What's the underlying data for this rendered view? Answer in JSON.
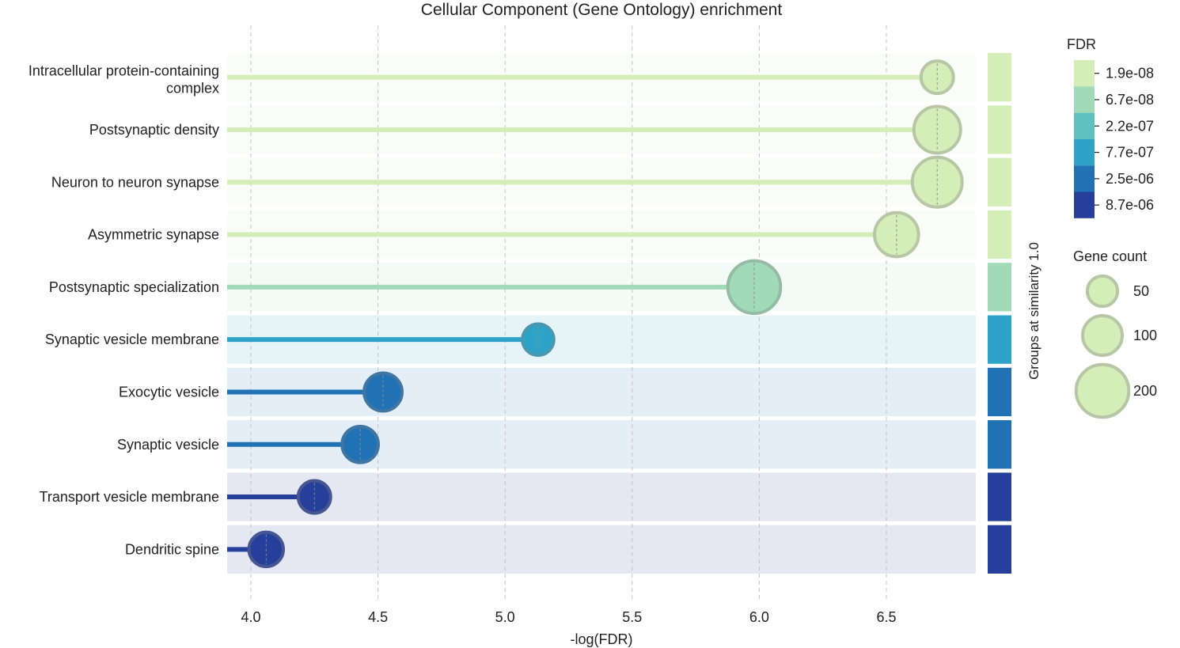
{
  "chart_data": {
    "type": "lollipop",
    "title": "Cellular Component (Gene Ontology) enrichment",
    "xlabel": "-log(FDR)",
    "xlim": [
      3.9,
      6.85
    ],
    "xticks": [
      4.0,
      4.5,
      5.0,
      5.5,
      6.0,
      6.5
    ],
    "xtick_labels": [
      "4.0",
      "4.5",
      "5.0",
      "5.5",
      "6.0",
      "6.5"
    ],
    "grid": "vertical dashed",
    "categories": [
      "Intracellular protein-containing complex",
      "Postsynaptic density",
      "Neuron to neuron synapse",
      "Asymmetric synapse",
      "Postsynaptic specialization",
      "Synaptic vesicle membrane",
      "Exocytic vesicle",
      "Synaptic vesicle",
      "Transport vesicle membrane",
      "Dendritic spine"
    ],
    "values": [
      6.7,
      6.7,
      6.7,
      6.54,
      5.98,
      5.13,
      4.52,
      4.43,
      4.25,
      4.06
    ],
    "gene_count": [
      60,
      150,
      175,
      130,
      200,
      55,
      90,
      80,
      60,
      70
    ],
    "fdr_level": [
      0,
      0,
      0,
      0,
      1,
      3,
      4,
      4,
      5,
      5
    ],
    "right_strip_label": "Groups at similarity 1.0",
    "fdr_legend": {
      "title": "FDR",
      "labels": [
        "1.9e-08",
        "6.7e-08",
        "2.2e-07",
        "7.7e-07",
        "2.5e-06",
        "8.7e-06"
      ],
      "colors": [
        "#d4edb9",
        "#a0dab8",
        "#5fc0c0",
        "#2ea3c8",
        "#2171b5",
        "#253f9a"
      ]
    },
    "size_legend": {
      "title": "Gene count",
      "labels": [
        "50",
        "100",
        "200"
      ],
      "counts": [
        50,
        100,
        200
      ]
    }
  }
}
